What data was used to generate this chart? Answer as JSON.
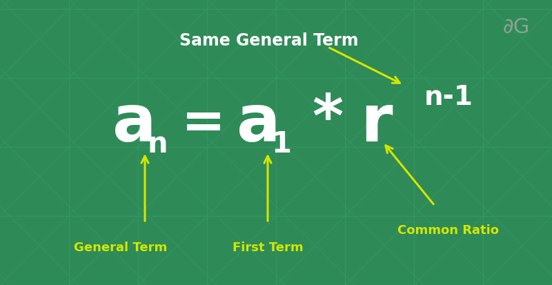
{
  "bg_color": "#2e8b57",
  "grid_color": "#35a068",
  "text_color": "#ffffff",
  "arrow_color": "#d4e600",
  "label_color": "#d4e600",
  "title": "Same General Term",
  "label_general_term": "General Term",
  "label_first_term": "First Term",
  "label_common_ratio": "Common Ratio",
  "figsize": [
    8.0,
    4.14
  ],
  "dpi": 100
}
